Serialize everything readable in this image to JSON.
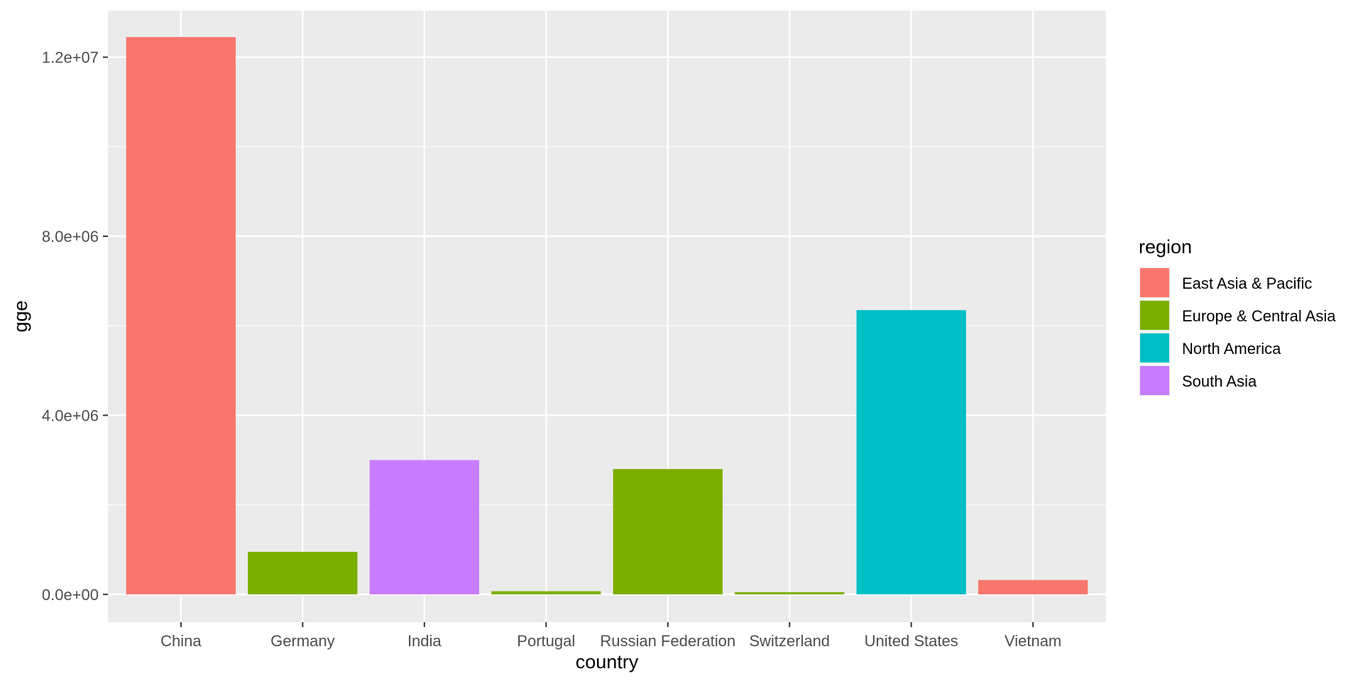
{
  "chart_data": {
    "type": "bar",
    "title": "",
    "xlabel": "country",
    "ylabel": "gge",
    "categories": [
      "China",
      "Germany",
      "India",
      "Portugal",
      "Russian Federation",
      "Switzerland",
      "United States",
      "Vietnam"
    ],
    "values": [
      12450000,
      950000,
      3000000,
      70000,
      2800000,
      50000,
      6350000,
      320000
    ],
    "bar_regions": [
      "East Asia & Pacific",
      "Europe & Central Asia",
      "South Asia",
      "Europe & Central Asia",
      "Europe & Central Asia",
      "Europe & Central Asia",
      "North America",
      "East Asia & Pacific"
    ],
    "ylim": [
      -620000,
      13040000
    ],
    "yticks": [
      0,
      4000000,
      8000000,
      12000000
    ],
    "ytick_labels": [
      "0.0e+00",
      "4.0e+06",
      "8.0e+06",
      "1.2e+07"
    ],
    "grid": true,
    "panel_background": "#ebebeb",
    "legend": {
      "title": "region",
      "placement": "right",
      "entries": [
        {
          "label": "East Asia & Pacific",
          "color": "#f8766d"
        },
        {
          "label": "Europe & Central Asia",
          "color": "#7cae00"
        },
        {
          "label": "North America",
          "color": "#00bfc4"
        },
        {
          "label": "South Asia",
          "color": "#c77cff"
        }
      ]
    }
  }
}
